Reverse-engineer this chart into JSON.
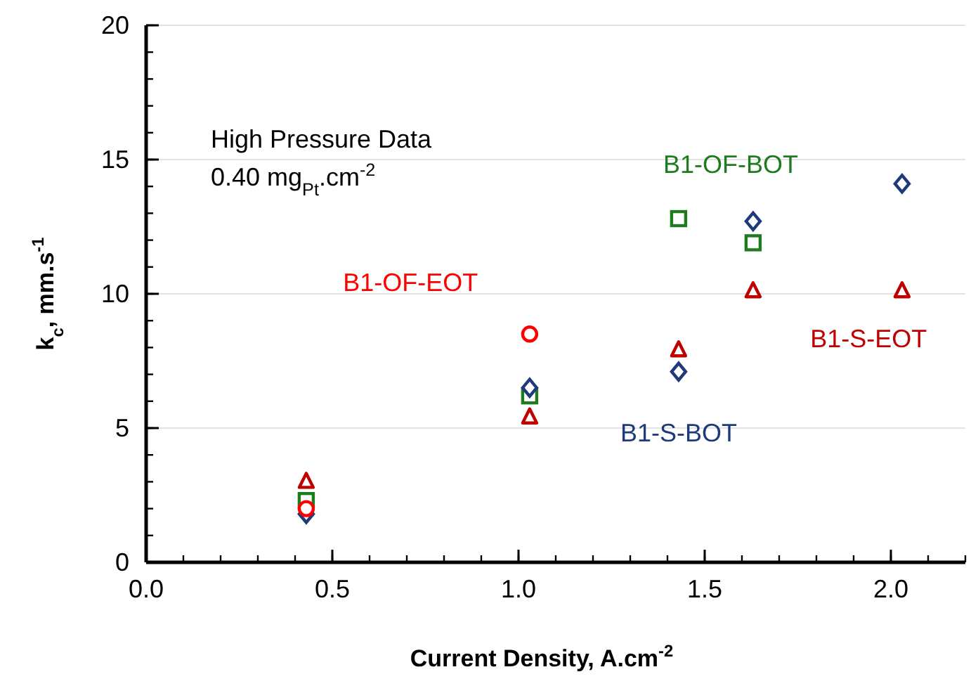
{
  "chart_data": {
    "type": "scatter",
    "xlabel": "Current Density, A.cm$^{-2}$",
    "ylabel": "k$_{c}$, mm.s$^{-1}$",
    "annotations": [
      "High Pressure Data",
      "0.40 mg$_{Pt}$.cm$^{-2}$"
    ],
    "xlim": [
      0,
      2.2
    ],
    "xticks": [
      {
        "value": 0,
        "label": "0.0"
      },
      0.5,
      {
        "value": 1,
        "label": "1.0"
      },
      1.5,
      {
        "value": 2,
        "label": "2.0"
      }
    ],
    "ylim": [
      0,
      20
    ],
    "yticks": [
      0,
      5,
      10,
      15,
      20
    ],
    "grid": "y",
    "series": [
      {
        "name": "B1-OF-EOT",
        "color": "#ff0000",
        "marker": "circle",
        "x": [
          0.43,
          1.03
        ],
        "values": [
          2.0,
          8.5
        ]
      },
      {
        "name": "B1-OF-BOT",
        "color": "#1e7b1e",
        "marker": "square",
        "x": [
          0.43,
          1.03,
          1.43,
          1.63
        ],
        "values": [
          2.3,
          6.2,
          12.8,
          11.9
        ]
      },
      {
        "name": "B1-S-BOT",
        "color": "#1f3a7a",
        "marker": "diamond",
        "x": [
          0.43,
          1.03,
          1.43,
          1.63,
          2.03
        ],
        "values": [
          1.8,
          6.5,
          7.1,
          12.7,
          14.1
        ]
      },
      {
        "name": "B1-S-EOT",
        "color": "#c00000",
        "marker": "triangle",
        "x": [
          0.43,
          1.03,
          1.43,
          1.63,
          2.03
        ],
        "values": [
          3.0,
          5.4,
          7.9,
          10.1,
          10.1
        ]
      }
    ]
  }
}
